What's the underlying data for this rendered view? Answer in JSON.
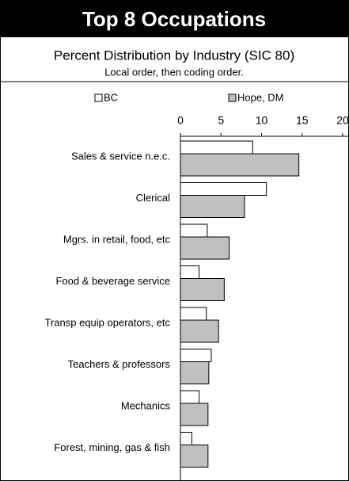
{
  "chart_data": {
    "type": "hbar",
    "title": "Top 8 Occupations",
    "subtitle": "Percent Distribution by Industry (SIC 80)",
    "note": "Local order, then coding order.",
    "categories": [
      "Sales & service  n.e.c.",
      "Clerical",
      "Mgrs. in retail, food, etc",
      "Food & beverage service",
      "Transp equip operators, etc",
      "Teachers & professors",
      "Mechanics",
      "Forest, mining, gas & fish"
    ],
    "series": [
      {
        "name": "BC",
        "color": "#ffffff",
        "values": [
          8.9,
          10.6,
          3.3,
          2.3,
          3.2,
          3.8,
          2.3,
          1.4
        ]
      },
      {
        "name": "Hope, DM",
        "color": "#c0c0c0",
        "values": [
          14.6,
          7.9,
          6.0,
          5.4,
          4.7,
          3.5,
          3.4,
          3.4
        ]
      }
    ],
    "xlim": [
      0,
      20
    ],
    "xticks": [
      0,
      5,
      10,
      15,
      20
    ],
    "grid": false,
    "legend": "top"
  }
}
